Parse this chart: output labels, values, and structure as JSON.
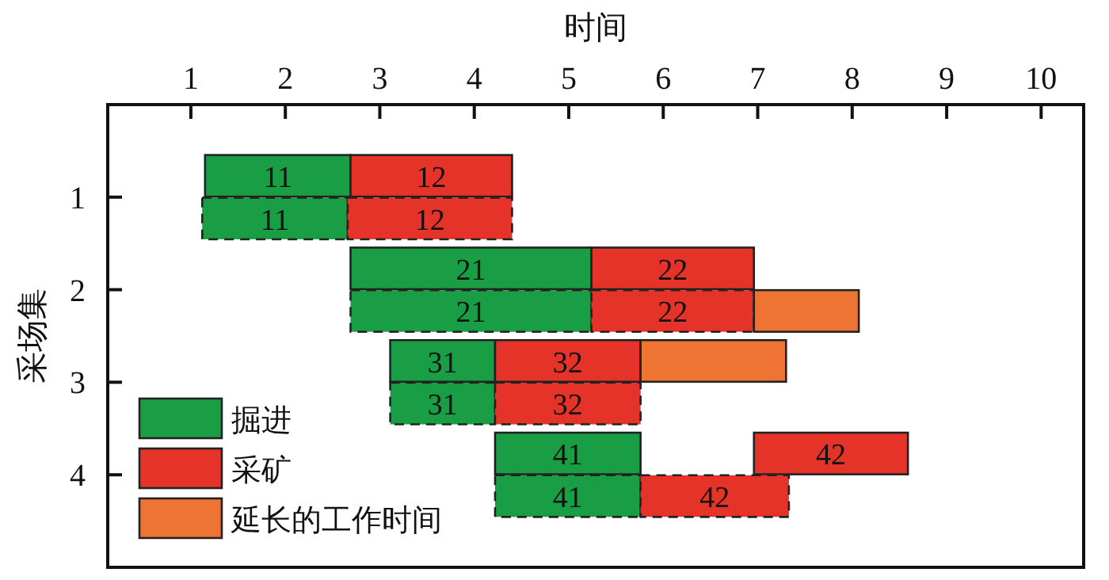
{
  "chart_data": {
    "type": "bar",
    "orientation": "horizontal",
    "xlabel": "时间",
    "ylabel": "采场集",
    "xlim": [
      0.12,
      10.45
    ],
    "xticks": [
      1,
      2,
      3,
      4,
      5,
      6,
      7,
      8,
      9,
      10
    ],
    "ylim": [
      5,
      0
    ],
    "yticks": [
      1,
      2,
      3,
      4
    ],
    "legend": "bottom left",
    "series": [
      {
        "name": "掘进",
        "color": "#1a9e45",
        "line_style": "solid",
        "x": [
          0.77,
          1.77,
          2.77,
          3.77
        ],
        "base": [
          1.15,
          2.69,
          3.11,
          4.22
        ],
        "values": [
          1.54,
          2.55,
          1.11,
          1.54
        ]
      },
      {
        "color": "#1a9e45",
        "line_style": "dashed",
        "x": [
          1.23,
          2.23,
          3.23,
          4.23
        ],
        "base": [
          1.12,
          2.69,
          3.11,
          4.22
        ],
        "values": [
          1.54,
          2.55,
          1.11,
          1.54
        ]
      },
      {
        "name": "采矿",
        "color": "#e5332a",
        "line_style": "solid",
        "x": [
          0.77,
          1.77,
          2.77,
          3.77
        ],
        "base": [
          2.69,
          5.24,
          4.22,
          6.96
        ],
        "values": [
          1.71,
          1.72,
          1.54,
          1.63
        ]
      },
      {
        "color": "#e5332a",
        "line_style": "dashed",
        "x": [
          1.23,
          2.23,
          3.23,
          4.23
        ],
        "base": [
          2.66,
          5.24,
          4.22,
          5.76
        ],
        "values": [
          1.74,
          1.72,
          1.54,
          1.57
        ]
      },
      {
        "name": "延长的工作时间",
        "color": "#ee7433",
        "line_style": "solid",
        "x": [
          2.23,
          2.77
        ],
        "base": [
          6.96,
          5.76
        ],
        "values": [
          1.11,
          1.54
        ]
      }
    ],
    "annotations": [
      "11",
      "21",
      "31",
      "41",
      "11",
      "21",
      "31",
      "41",
      "12",
      "22",
      "32",
      "42",
      "12",
      "22",
      "32",
      "42"
    ]
  }
}
